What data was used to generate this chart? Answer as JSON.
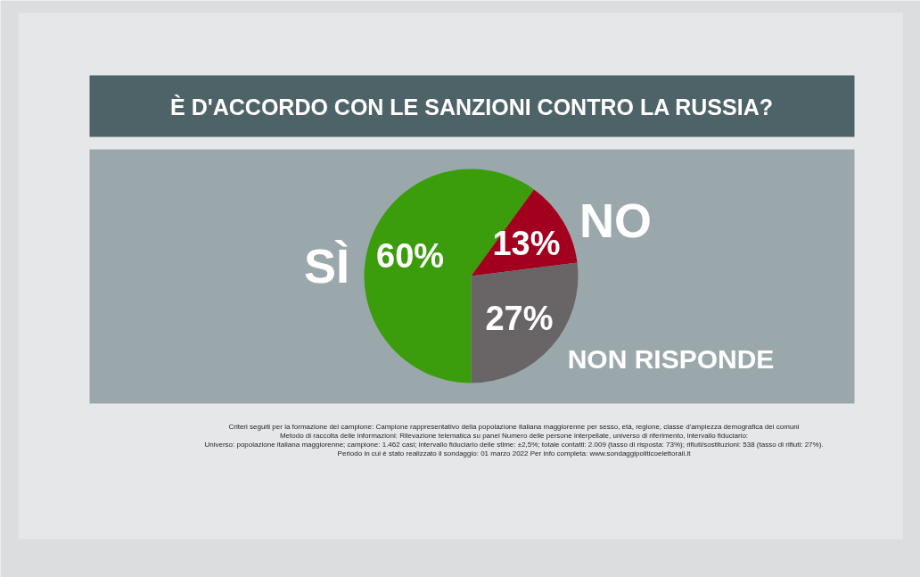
{
  "chart_data": {
    "type": "pie",
    "title": "È D'ACCORDO CON LE SANZIONI CONTRO LA RUSSIA?",
    "categories": [
      "SÌ",
      "NO",
      "NON RISPONDE"
    ],
    "values": [
      60,
      13,
      27
    ],
    "colors": [
      "#3b9c0c",
      "#a3001f",
      "#696466"
    ],
    "value_labels": [
      "60%",
      "13%",
      "27%"
    ],
    "annotations": [
      "Criteri seguiti per la formazione del campione: Campione rappresentativo della popolazione italiana maggiorenne per sesso, età, regione, classe d'ampiezza demografica dei comuni",
      "Metodo di raccolta delle informazioni: Rilevazione telematica su panel Numero delle persone interpellate, universo di riferimento, intervallo fiduciario:",
      "Universo: popolazione italiana maggiorenne; campione: 1.462 casi; intervallo fiduciario delle stime: ±2,5%; totale contatti: 2.009 (tasso di risposta: 73%); rifiuti/sostituzioni: 538 (tasso di rifiuti: 27%).",
      "Periodo in cui è stato realizzato il sondaggio: 01 marzo 2022 Per info completa: www.sondaggipoliticoelettorali.it"
    ]
  }
}
